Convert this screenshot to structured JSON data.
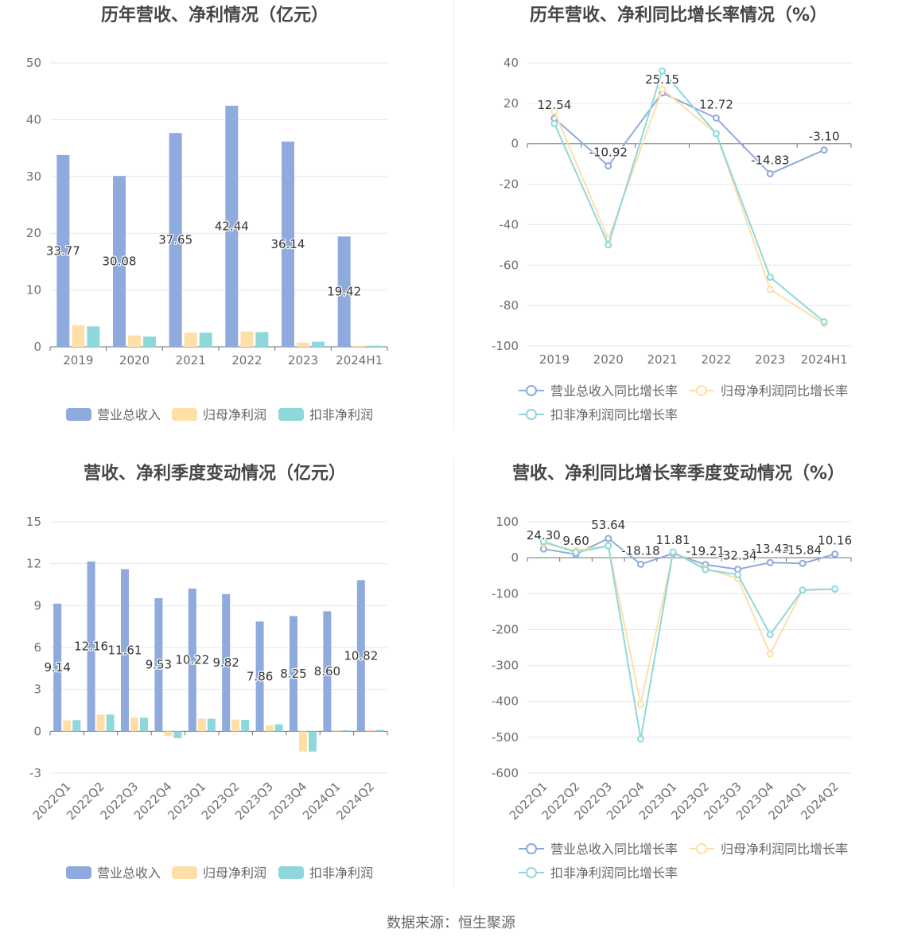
{
  "footer": {
    "source": "数据来源：恒生聚源"
  },
  "chart_data": [
    {
      "type": "bar",
      "title": "历年营收、净利情况（亿元）",
      "categories": [
        "2019",
        "2020",
        "2021",
        "2022",
        "2023",
        "2024H1"
      ],
      "ylim": [
        0,
        50
      ],
      "yticks": [
        0,
        10,
        20,
        30,
        40,
        50
      ],
      "grid": true,
      "legend": "bottom",
      "series": [
        {
          "name": "营业总收入",
          "color": "#8FAADC",
          "values": [
            33.77,
            30.08,
            37.65,
            42.44,
            36.14,
            19.42
          ],
          "labels": [
            "33.77",
            "30.08",
            "37.65",
            "42.44",
            "36.14",
            "19.42"
          ]
        },
        {
          "name": "归母净利润",
          "color": "#FFDFA8",
          "values": [
            3.8,
            2.0,
            2.5,
            2.7,
            0.75,
            0.2
          ]
        },
        {
          "name": "扣非净利润",
          "color": "#8ED8DC",
          "values": [
            3.6,
            1.8,
            2.5,
            2.6,
            0.9,
            0.2
          ]
        }
      ]
    },
    {
      "type": "line",
      "title": "历年营收、净利同比增长率情况（%）",
      "categories": [
        "2019",
        "2020",
        "2021",
        "2022",
        "2023",
        "2024H1"
      ],
      "ylim": [
        -100,
        40
      ],
      "yticks": [
        -100,
        -80,
        -60,
        -40,
        -20,
        0,
        20,
        40
      ],
      "grid": true,
      "legend": "bottom",
      "series": [
        {
          "name": "营业总收入同比增长率",
          "color": "#8FAADC",
          "values": [
            12.54,
            -10.92,
            25.15,
            12.72,
            -14.83,
            -3.1
          ],
          "labels": [
            "12.54",
            "-10.92",
            "25.15",
            "12.72",
            "-14.83",
            "-3.10"
          ]
        },
        {
          "name": "归母净利润同比增长率",
          "color": "#FFDFA8",
          "values": [
            16,
            -47,
            27,
            5,
            -72,
            -89
          ]
        },
        {
          "name": "扣非净利润同比增长率",
          "color": "#8ED8DC",
          "values": [
            10,
            -50,
            36,
            5,
            -66,
            -88
          ]
        }
      ]
    },
    {
      "type": "bar",
      "title": "营收、净利季度变动情况（亿元）",
      "categories": [
        "2022Q1",
        "2022Q2",
        "2022Q3",
        "2022Q4",
        "2023Q1",
        "2023Q2",
        "2023Q3",
        "2023Q4",
        "2024Q1",
        "2024Q2"
      ],
      "ylim": [
        -3,
        15
      ],
      "yticks": [
        -3,
        0,
        3,
        6,
        9,
        12,
        15
      ],
      "grid": true,
      "legend": "bottom",
      "series": [
        {
          "name": "营业总收入",
          "color": "#8FAADC",
          "values": [
            9.14,
            12.16,
            11.61,
            9.53,
            10.22,
            9.82,
            7.86,
            8.25,
            8.6,
            10.82
          ],
          "labels": [
            "9.14",
            "12.16",
            "11.61",
            "9.53",
            "10.22",
            "9.82",
            "7.86",
            "8.25",
            "8.60",
            "10.82"
          ]
        },
        {
          "name": "归母净利润",
          "color": "#FFDFA8",
          "values": [
            0.78,
            1.2,
            0.98,
            -0.35,
            0.9,
            0.84,
            0.42,
            -1.45,
            0.09,
            0.1
          ]
        },
        {
          "name": "扣非净利润",
          "color": "#8ED8DC",
          "values": [
            0.8,
            1.2,
            0.98,
            -0.5,
            0.9,
            0.82,
            0.5,
            -1.45,
            0.08,
            0.1
          ]
        }
      ]
    },
    {
      "type": "line",
      "title": "营收、净利同比增长率季度变动情况（%）",
      "categories": [
        "2022Q1",
        "2022Q2",
        "2022Q3",
        "2022Q4",
        "2023Q1",
        "2023Q2",
        "2023Q3",
        "2023Q4",
        "2024Q1",
        "2024Q2"
      ],
      "ylim": [
        -600,
        100
      ],
      "yticks": [
        -600,
        -500,
        -400,
        -300,
        -200,
        -100,
        0,
        100
      ],
      "grid": true,
      "legend": "bottom",
      "series": [
        {
          "name": "营业总收入同比增长率",
          "color": "#8FAADC",
          "values": [
            24.3,
            9.6,
            53.64,
            -18.18,
            11.81,
            -19.21,
            -32.34,
            -13.43,
            -15.84,
            10.16
          ],
          "labels": [
            "24.30",
            "9.60",
            "53.64",
            "-18.18",
            "11.81",
            "-19.21",
            "-32.34",
            "-13.43",
            "-15.84",
            "10.16"
          ]
        },
        {
          "name": "归母净利润同比增长率",
          "color": "#FFDFA8",
          "values": [
            40,
            20,
            33,
            -408,
            15,
            -30,
            -58,
            -268,
            -90,
            -88
          ]
        },
        {
          "name": "扣非净利润同比增长率",
          "color": "#8ED8DC",
          "values": [
            45,
            15,
            33,
            -505,
            16,
            -33,
            -47,
            -214,
            -90,
            -87
          ]
        }
      ]
    }
  ]
}
